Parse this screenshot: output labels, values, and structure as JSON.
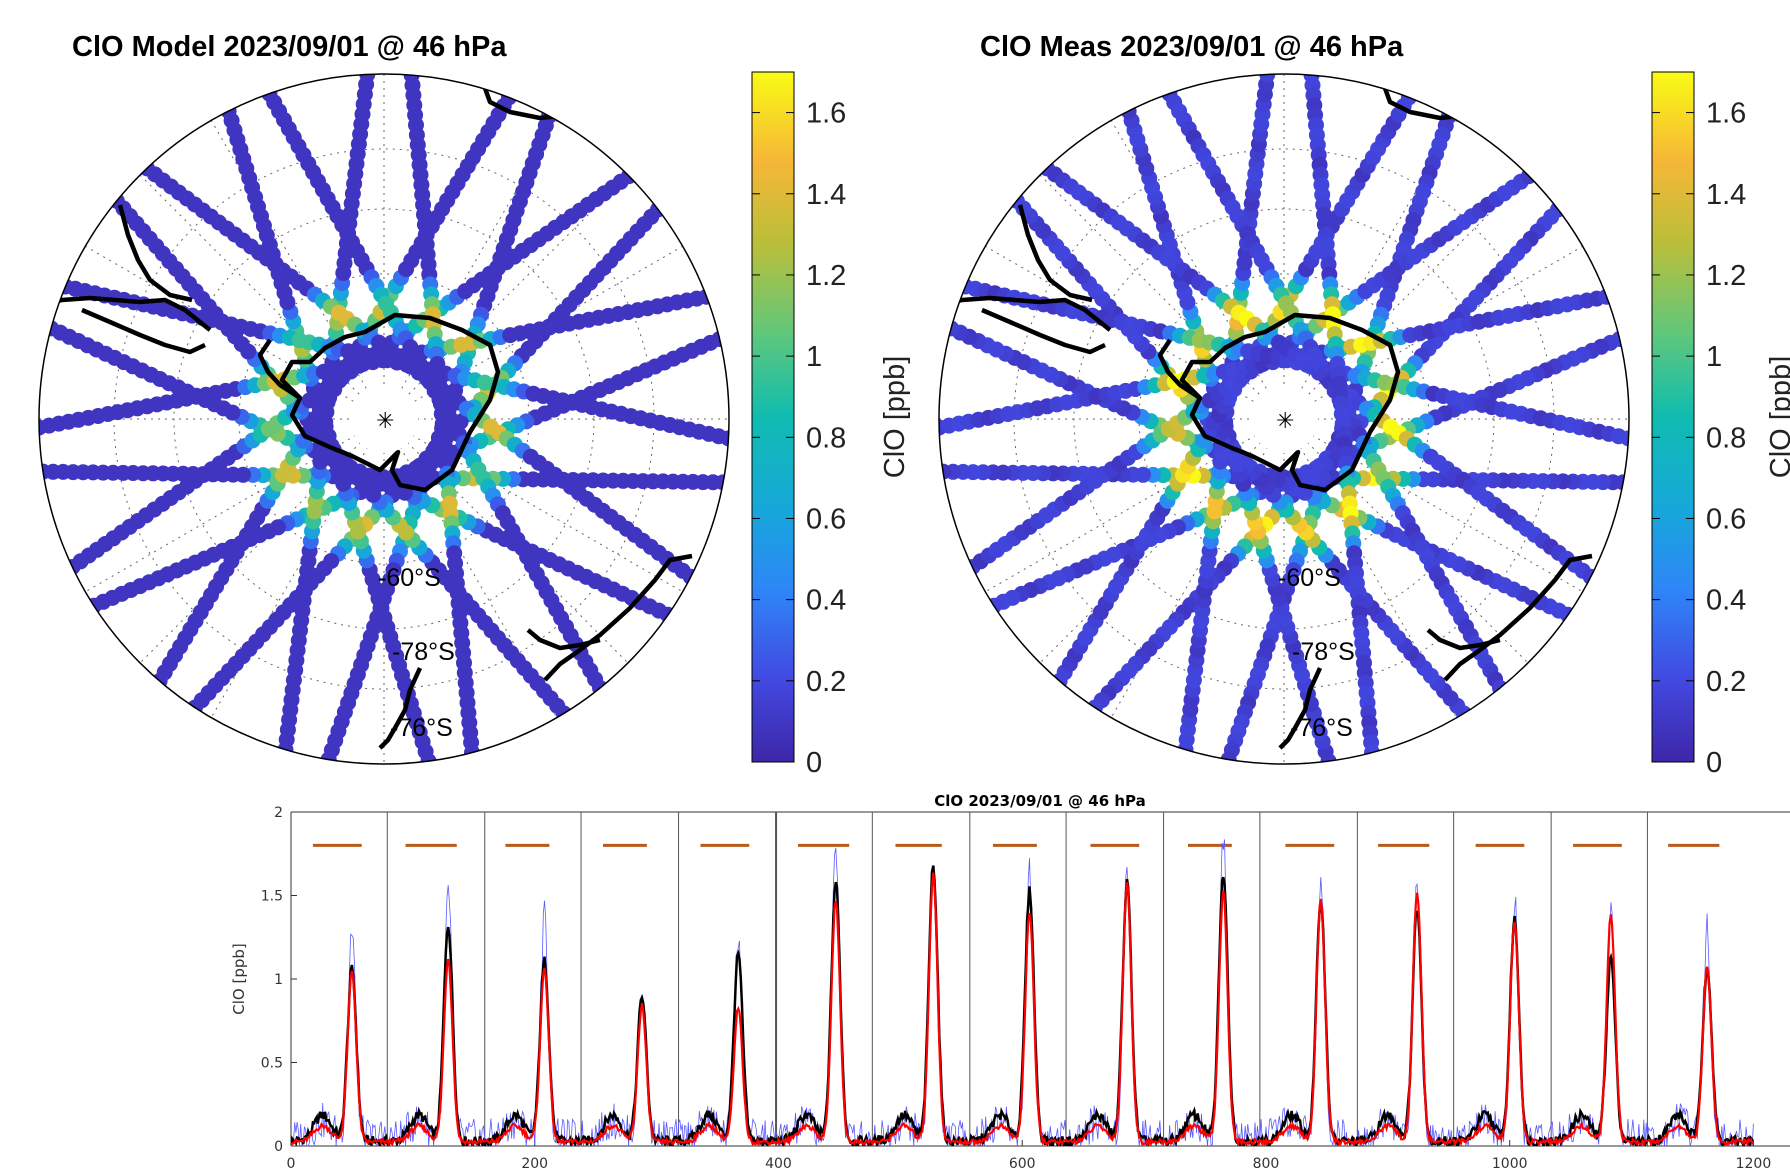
{
  "maps": [
    {
      "title": "ClO Model 2023/09/01 @ 46 hPa",
      "lat_labels": [
        "-60°S",
        "-78°S",
        "-76°S"
      ],
      "colorbar": {
        "ticks": [
          "0",
          "0.2",
          "0.4",
          "0.6",
          "0.8",
          "1",
          "1.2",
          "1.4",
          "1.6"
        ],
        "label": "ClO [ppb]"
      }
    },
    {
      "title": "ClO Meas 2023/09/01 @ 46 hPa",
      "lat_labels": [
        "-60°S",
        "-78°S",
        "-76°S"
      ],
      "colorbar": {
        "ticks": [
          "0",
          "0.2",
          "0.4",
          "0.6",
          "0.8",
          "1",
          "1.2",
          "1.4",
          "1.6"
        ],
        "label": "ClO [ppb]"
      }
    }
  ],
  "chart_data": {
    "type": "line",
    "title": "ClO 2023/09/01 @ 46 hPa",
    "xlabel": "",
    "ylabel": "ClO [ppb]",
    "xlim": [
      0,
      1200
    ],
    "ylim": [
      0,
      2
    ],
    "x_ticks": [
      "0",
      "200",
      "400",
      "600",
      "800",
      "1000",
      "1200"
    ],
    "y_ticks": [
      "0",
      "0.5",
      "1",
      "1.5",
      "2"
    ],
    "grid": false,
    "colors": {
      "model": "#000000",
      "measurement": "#ff0000",
      "raw": "#5a5aff",
      "segment_bar": "#b85a1a",
      "separator": "#555555"
    },
    "orbit_boundaries": [
      79,
      159,
      238,
      318,
      398,
      477,
      557,
      636,
      716,
      795,
      875,
      954,
      1034,
      1113
    ],
    "orbit_bar_level": 1.8,
    "orbit_bars": [
      [
        18,
        58
      ],
      [
        94,
        136
      ],
      [
        176,
        212
      ],
      [
        256,
        292
      ],
      [
        336,
        376
      ],
      [
        416,
        458
      ],
      [
        496,
        534
      ],
      [
        576,
        612
      ],
      [
        656,
        696
      ],
      [
        736,
        772
      ],
      [
        816,
        856
      ],
      [
        892,
        934
      ],
      [
        972,
        1012
      ],
      [
        1052,
        1092
      ],
      [
        1130,
        1172
      ]
    ],
    "peaks": [
      {
        "x": 50,
        "model": 1.03,
        "meas": 1.02,
        "raw": 1.25
      },
      {
        "x": 129,
        "model": 1.3,
        "meas": 1.1,
        "raw": 1.45
      },
      {
        "x": 208,
        "model": 1.08,
        "meas": 1.04,
        "raw": 1.32
      },
      {
        "x": 288,
        "model": 0.87,
        "meas": 0.82,
        "raw": 0.87
      },
      {
        "x": 367,
        "model": 1.12,
        "meas": 0.8,
        "raw": 1.15
      },
      {
        "x": 447,
        "model": 1.55,
        "meas": 1.45,
        "raw": 1.77
      },
      {
        "x": 527,
        "model": 1.65,
        "meas": 1.6,
        "raw": 1.6
      },
      {
        "x": 606,
        "model": 1.5,
        "meas": 1.38,
        "raw": 1.58
      },
      {
        "x": 686,
        "model": 1.55,
        "meas": 1.55,
        "raw": 1.62
      },
      {
        "x": 765,
        "model": 1.6,
        "meas": 1.5,
        "raw": 1.78
      },
      {
        "x": 845,
        "model": 1.45,
        "meas": 1.45,
        "raw": 1.52
      },
      {
        "x": 924,
        "model": 1.4,
        "meas": 1.5,
        "raw": 1.5
      },
      {
        "x": 1004,
        "model": 1.33,
        "meas": 1.33,
        "raw": 1.4
      },
      {
        "x": 1083,
        "model": 1.1,
        "meas": 1.35,
        "raw": 1.3
      },
      {
        "x": 1162,
        "model": 1.05,
        "meas": 1.05,
        "raw": 1.25
      }
    ]
  }
}
